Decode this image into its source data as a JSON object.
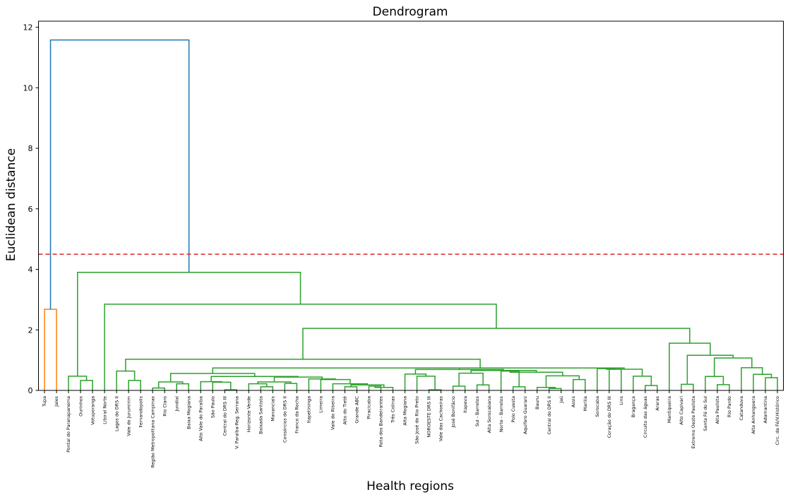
{
  "chart_data": {
    "type": "dendrogram",
    "title": "Dendrogram",
    "xlabel": "Health regions",
    "ylabel": "Euclidean distance",
    "ylim": [
      0,
      12.2
    ],
    "yticks": [
      0,
      2,
      4,
      6,
      8,
      10,
      12
    ],
    "threshold": {
      "value": 4.5,
      "color": "#d62728",
      "style": "dashed"
    },
    "colors": {
      "cluster_1": "#ff7f0e",
      "cluster_2": "#2ca02c",
      "above_threshold": "#1f77b4"
    },
    "leaves": [
      "Tupa",
      "Jales",
      "Pontal do Paranapanema",
      "Ourinhos",
      "Votuporanga",
      "Litoral Norte",
      "Lagos do DRS II",
      "Vale do Jurumirim",
      "Fernandopolis",
      "Região Metropolitana Campinas",
      "Rio Claro",
      "Jundiaí",
      "Baixa Mogiana",
      "Alto Vale do Paraíba",
      "São Paulo",
      "Central do DRS III",
      "V. Paraíba-Reg. Serrana",
      "Horizonte Verde",
      "Baixada Santista",
      "Mananciais",
      "Consórcios do DRS II",
      "Franco da Rocha",
      "Itapetininga",
      "Limeira",
      "Vale do Ribeira",
      "Alto do Tietê",
      "Grande ABC",
      "Piracicaba",
      "Rota dos Bandeirantes",
      "Três Colinas",
      "Alta Mogiana",
      "São José do Rio Preto",
      "NOROESTE DRS III",
      "Vale das Cachoeiras",
      "José Bonifácio",
      "Itapeva",
      "Sul - Barretos",
      "Alta Sorocabana",
      "Norte - Barretos",
      "Polo Cuesta",
      "Aquifero Guarani",
      "Bauru",
      "Central do DRS II",
      "Jaú",
      "Assis",
      "Marilia",
      "Sorocaba",
      "Coração do DRS III",
      "Lins",
      "Bragança",
      "Circuito das águas",
      "Araras",
      "Mantiqueira",
      "Alto Capivari",
      "Extremo Oeste Paulista",
      "Santa Fé do Sul",
      "Alta Paulista",
      "Rio Pardo",
      "Catanduva",
      "Alta Anhanguera",
      "Adamantina",
      "Circ. da Fé/V.Histórico"
    ],
    "links": [
      {
        "a": 0,
        "b": 1,
        "h": 2.68,
        "cluster": "cluster_1"
      },
      {
        "a": 3,
        "b": 4,
        "h": 0.33,
        "cluster": "cluster_2"
      },
      {
        "a": 2,
        "b": "L2",
        "h": 0.47,
        "cluster": "cluster_2"
      },
      {
        "a": 7,
        "b": 8,
        "h": 0.33,
        "cluster": "cluster_2"
      },
      {
        "a": 6,
        "b": "L4",
        "h": 0.64,
        "cluster": "cluster_2"
      },
      {
        "a": 9,
        "b": 10,
        "h": 0.08,
        "cluster": "cluster_2"
      },
      {
        "a": 11,
        "b": 12,
        "h": 0.22,
        "cluster": "cluster_2"
      },
      {
        "a": "L6",
        "b": "L7",
        "h": 0.28,
        "cluster": "cluster_2"
      },
      {
        "a": 15,
        "b": 16,
        "h": 0.02,
        "cluster": "cluster_2"
      },
      {
        "a": 14,
        "b": "L9",
        "h": 0.27,
        "cluster": "cluster_2"
      },
      {
        "a": 13,
        "b": "L10",
        "h": 0.29,
        "cluster": "cluster_2"
      },
      {
        "a": 18,
        "b": 19,
        "h": 0.12,
        "cluster": "cluster_2"
      },
      {
        "a": 17,
        "b": "L12",
        "h": 0.22,
        "cluster": "cluster_2"
      },
      {
        "a": 20,
        "b": 21,
        "h": 0.23,
        "cluster": "cluster_2"
      },
      {
        "a": "L13",
        "b": "L14",
        "h": 0.28,
        "cluster": "cluster_2"
      },
      {
        "a": 25,
        "b": 26,
        "h": 0.12,
        "cluster": "cluster_2"
      },
      {
        "a": 27,
        "b": 28,
        "h": 0.14,
        "cluster": "cluster_2"
      },
      {
        "a": 29,
        "b": "L17",
        "h": 0.1,
        "cluster": "cluster_2"
      },
      {
        "a": "L16",
        "b": "L18",
        "h": 0.18,
        "cluster": "cluster_2"
      },
      {
        "a": 24,
        "b": "L19",
        "h": 0.22,
        "cluster": "cluster_2"
      },
      {
        "a": 23,
        "b": "L20",
        "h": 0.36,
        "cluster": "cluster_2"
      },
      {
        "a": 22,
        "b": "L21",
        "h": 0.38,
        "cluster": "cluster_2"
      },
      {
        "a": "L15",
        "b": "L22",
        "h": 0.44,
        "cluster": "cluster_2"
      },
      {
        "a": "L11",
        "b": "L23",
        "h": 0.46,
        "cluster": "cluster_2"
      },
      {
        "a": "L8",
        "b": "L24",
        "h": 0.56,
        "cluster": "cluster_2"
      },
      {
        "a": 32,
        "b": 33,
        "h": 0.02,
        "cluster": "cluster_2"
      },
      {
        "a": 31,
        "b": "L26",
        "h": 0.47,
        "cluster": "cluster_2"
      },
      {
        "a": 30,
        "b": "L27",
        "h": 0.54,
        "cluster": "cluster_2"
      },
      {
        "a": 34,
        "b": 35,
        "h": 0.14,
        "cluster": "cluster_2"
      },
      {
        "a": 36,
        "b": 37,
        "h": 0.18,
        "cluster": "cluster_2"
      },
      {
        "a": "L29",
        "b": "L30",
        "h": 0.57,
        "cluster": "cluster_2"
      },
      {
        "a": 39,
        "b": 40,
        "h": 0.12,
        "cluster": "cluster_2"
      },
      {
        "a": 38,
        "b": "L32",
        "h": 0.64,
        "cluster": "cluster_2"
      },
      {
        "a": 42,
        "b": 43,
        "h": 0.06,
        "cluster": "cluster_2"
      },
      {
        "a": 41,
        "b": "L34",
        "h": 0.1,
        "cluster": "cluster_2"
      },
      {
        "a": 44,
        "b": 45,
        "h": 0.36,
        "cluster": "cluster_2"
      },
      {
        "a": "L35",
        "b": "L36",
        "h": 0.48,
        "cluster": "cluster_2"
      },
      {
        "a": "L33",
        "b": "L37",
        "h": 0.6,
        "cluster": "cluster_2"
      },
      {
        "a": "L31",
        "b": "L38",
        "h": 0.66,
        "cluster": "cluster_2"
      },
      {
        "a": "L28",
        "b": "L39",
        "h": 0.69,
        "cluster": "cluster_2"
      },
      {
        "a": "L25",
        "b": "L40",
        "h": 0.74,
        "cluster": "cluster_2"
      },
      {
        "a": 47,
        "b": 48,
        "h": 0.7,
        "cluster": "cluster_2"
      },
      {
        "a": 46,
        "b": "L42",
        "h": 0.72,
        "cluster": "cluster_2"
      },
      {
        "a": 50,
        "b": 51,
        "h": 0.16,
        "cluster": "cluster_2"
      },
      {
        "a": 49,
        "b": "L44",
        "h": 0.47,
        "cluster": "cluster_2"
      },
      {
        "a": "L43",
        "b": "L45",
        "h": 0.7,
        "cluster": "cluster_2"
      },
      {
        "a": "L41",
        "b": "L46",
        "h": 0.74,
        "cluster": "cluster_2"
      },
      {
        "a": "L5",
        "b": "L47",
        "h": 1.03,
        "cluster": "cluster_2"
      },
      {
        "a": 53,
        "b": 54,
        "h": 0.2,
        "cluster": "cluster_2"
      },
      {
        "a": 56,
        "b": 57,
        "h": 0.19,
        "cluster": "cluster_2"
      },
      {
        "a": 55,
        "b": "L50",
        "h": 0.46,
        "cluster": "cluster_2"
      },
      {
        "a": 60,
        "b": 61,
        "h": 0.42,
        "cluster": "cluster_2"
      },
      {
        "a": 59,
        "b": "L52",
        "h": 0.53,
        "cluster": "cluster_2"
      },
      {
        "a": 58,
        "b": "L53",
        "h": 0.75,
        "cluster": "cluster_2"
      },
      {
        "a": "L51",
        "b": "L54",
        "h": 1.07,
        "cluster": "cluster_2"
      },
      {
        "a": "L49",
        "b": "L55",
        "h": 1.16,
        "cluster": "cluster_2"
      },
      {
        "a": 52,
        "b": "L56",
        "h": 1.56,
        "cluster": "cluster_2"
      },
      {
        "a": "L48",
        "b": "L57",
        "h": 2.05,
        "cluster": "cluster_2"
      },
      {
        "a": 5,
        "b": "L58",
        "h": 2.85,
        "cluster": "cluster_2"
      },
      {
        "a": "L3",
        "b": "L59",
        "h": 3.9,
        "cluster": "cluster_2"
      },
      {
        "a": "L1",
        "b": "L60",
        "h": 11.58,
        "cluster": "above_threshold"
      }
    ]
  }
}
